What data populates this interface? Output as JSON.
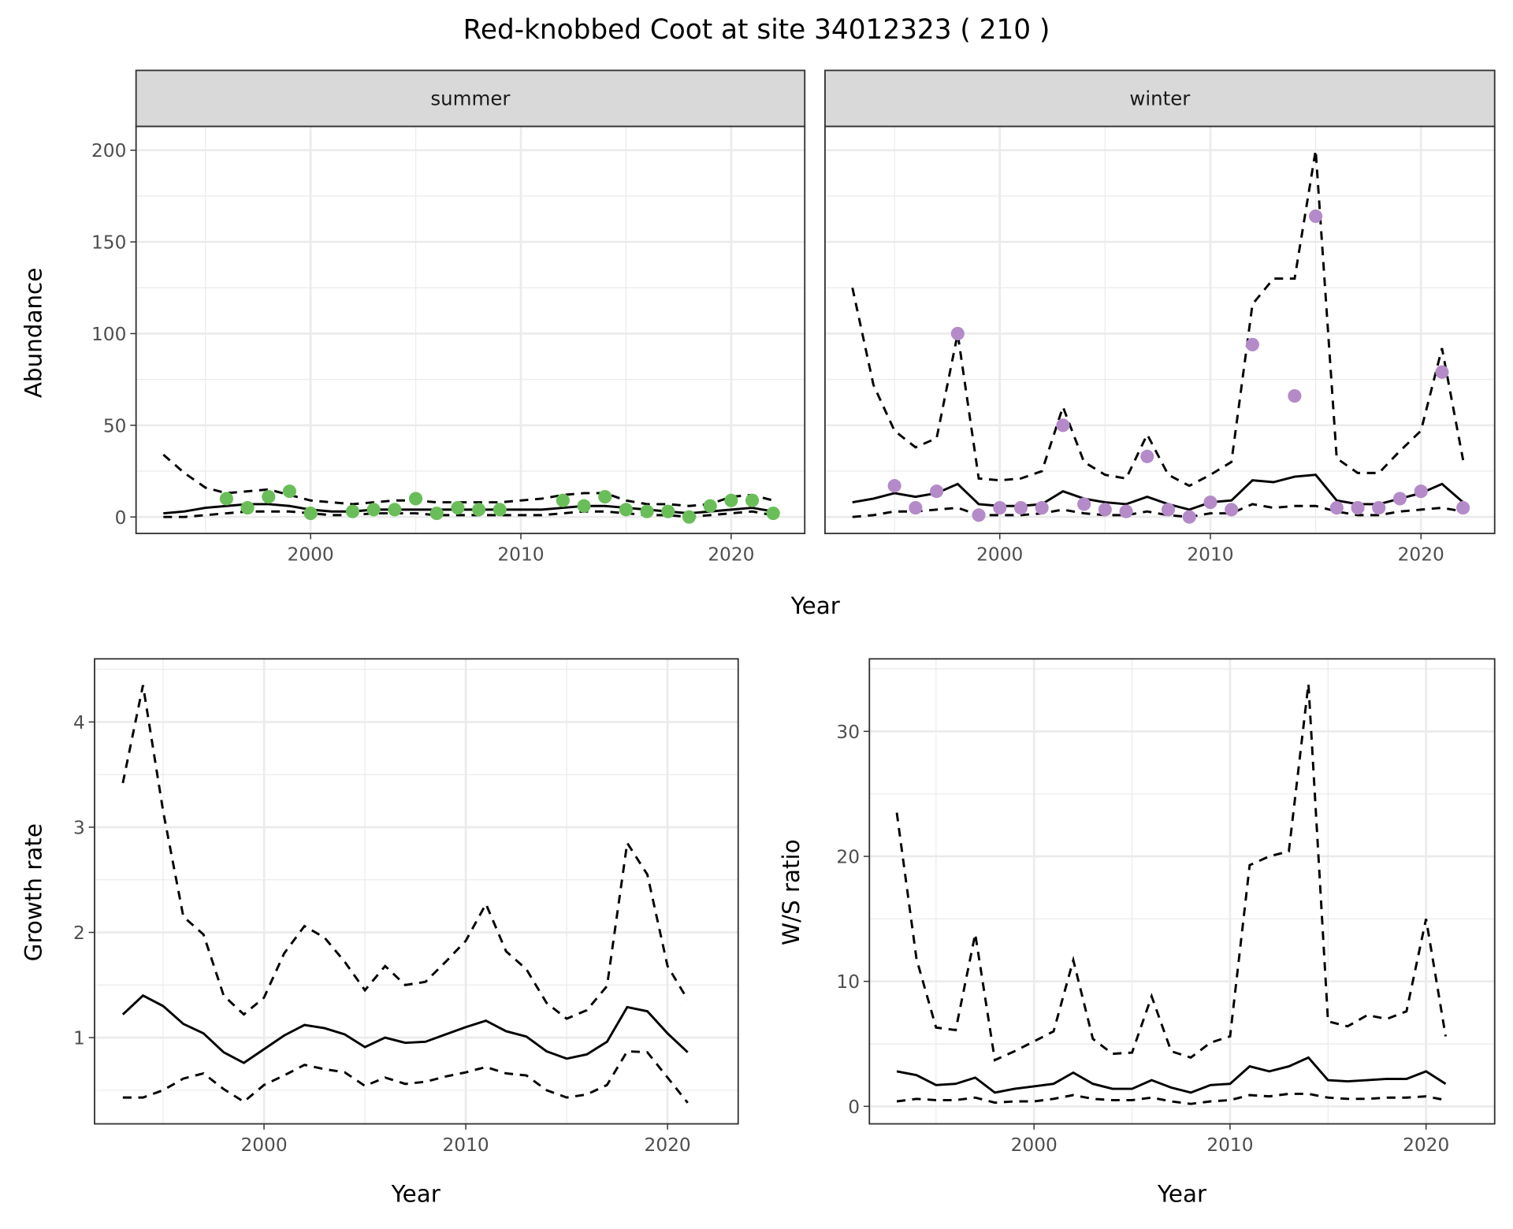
{
  "title": "Red-knobbed Coot at site 34012323 ( 210 )",
  "colors": {
    "summer_points": "#6ABE59",
    "winter_points": "#B48BC8",
    "lines": "#000000",
    "strip_fill": "#D9D9D9",
    "grid": "#EBEBEB"
  },
  "chart_data": [
    {
      "id": "summer",
      "type": "line",
      "strip": "summer",
      "xlabel": "Year",
      "ylabel": "Abundance",
      "xlim": [
        1991.7,
        2023.5
      ],
      "ylim": [
        -9,
        213
      ],
      "xticks": [
        2000,
        2010,
        2020
      ],
      "yticks": [
        0,
        50,
        100,
        150,
        200
      ],
      "grid": true,
      "x": [
        1993,
        1994,
        1995,
        1996,
        1997,
        1998,
        1999,
        2000,
        2001,
        2002,
        2003,
        2004,
        2005,
        2006,
        2007,
        2008,
        2009,
        2010,
        2011,
        2012,
        2013,
        2014,
        2015,
        2016,
        2017,
        2018,
        2019,
        2020,
        2021,
        2022
      ],
      "series": [
        {
          "style": "solid",
          "values": [
            2,
            3,
            5,
            6,
            7,
            7,
            6,
            4,
            3,
            3,
            4,
            4,
            4,
            4,
            4,
            4,
            4,
            4,
            4,
            5,
            6,
            6,
            5,
            4,
            3,
            2,
            3,
            4,
            5,
            3
          ]
        },
        {
          "style": "dashed",
          "values": [
            34,
            24,
            16,
            13,
            14,
            15,
            12,
            9,
            8,
            7,
            8,
            9,
            9,
            8,
            8,
            8,
            8,
            9,
            10,
            12,
            13,
            13,
            9,
            7,
            7,
            6,
            7,
            11,
            12,
            9
          ]
        },
        {
          "style": "dashed",
          "values": [
            0,
            0,
            1,
            2,
            3,
            3,
            3,
            2,
            1,
            1,
            2,
            2,
            2,
            1,
            1,
            1,
            1,
            1,
            1,
            2,
            3,
            3,
            2,
            1,
            1,
            0,
            1,
            2,
            3,
            1
          ]
        }
      ],
      "points": {
        "x": [
          1996,
          1997,
          1998,
          1999,
          2000,
          2002,
          2003,
          2004,
          2005,
          2006,
          2007,
          2008,
          2009,
          2012,
          2013,
          2014,
          2015,
          2016,
          2017,
          2018,
          2019,
          2020,
          2021,
          2022
        ],
        "y": [
          10,
          5,
          11,
          14,
          2,
          3,
          4,
          4,
          10,
          2,
          5,
          4,
          4,
          9,
          6,
          11,
          4,
          3,
          3,
          0,
          6,
          9,
          9,
          2
        ]
      }
    },
    {
      "id": "winter",
      "type": "line",
      "strip": "winter",
      "xlabel": "Year",
      "ylabel": "Abundance",
      "xlim": [
        1991.7,
        2023.5
      ],
      "ylim": [
        -9,
        213
      ],
      "xticks": [
        2000,
        2010,
        2020
      ],
      "yticks": [
        0,
        50,
        100,
        150,
        200
      ],
      "grid": true,
      "x": [
        1993,
        1994,
        1995,
        1996,
        1997,
        1998,
        1999,
        2000,
        2001,
        2002,
        2003,
        2004,
        2005,
        2006,
        2007,
        2008,
        2009,
        2010,
        2011,
        2012,
        2013,
        2014,
        2015,
        2016,
        2017,
        2018,
        2019,
        2020,
        2021,
        2022
      ],
      "series": [
        {
          "style": "solid",
          "values": [
            8,
            10,
            13,
            11,
            13,
            18,
            7,
            6,
            6,
            7,
            14,
            10,
            8,
            7,
            11,
            7,
            4,
            8,
            9,
            20,
            19,
            22,
            23,
            9,
            7,
            7,
            10,
            13,
            18,
            8
          ]
        },
        {
          "style": "dashed",
          "values": [
            125,
            72,
            47,
            38,
            43,
            100,
            21,
            20,
            21,
            25,
            60,
            30,
            23,
            21,
            45,
            23,
            17,
            23,
            30,
            116,
            130,
            130,
            200,
            32,
            24,
            24,
            36,
            47,
            92,
            31
          ]
        },
        {
          "style": "dashed",
          "values": [
            0,
            1,
            3,
            3,
            4,
            5,
            1,
            1,
            1,
            2,
            4,
            2,
            1,
            1,
            3,
            1,
            0,
            2,
            2,
            7,
            5,
            6,
            6,
            3,
            1,
            1,
            3,
            4,
            5,
            3
          ]
        }
      ],
      "points": {
        "x": [
          1995,
          1996,
          1997,
          1998,
          1999,
          2000,
          2001,
          2002,
          2003,
          2004,
          2005,
          2006,
          2007,
          2008,
          2009,
          2010,
          2011,
          2012,
          2014,
          2015,
          2016,
          2017,
          2018,
          2019,
          2020,
          2021,
          2022
        ],
        "y": [
          17,
          5,
          14,
          100,
          1,
          5,
          5,
          5,
          50,
          7,
          4,
          3,
          33,
          4,
          0,
          8,
          4,
          94,
          66,
          164,
          5,
          5,
          5,
          10,
          14,
          79,
          5
        ]
      }
    },
    {
      "id": "growth",
      "type": "line",
      "xlabel": "Year",
      "ylabel": "Growth rate",
      "xlim": [
        1991.6,
        2023.5
      ],
      "ylim": [
        0.18,
        4.6
      ],
      "xticks": [
        2000,
        2010,
        2020
      ],
      "yticks": [
        1,
        2,
        3,
        4
      ],
      "grid": true,
      "x": [
        1993,
        1994,
        1995,
        1996,
        1997,
        1998,
        1999,
        2000,
        2001,
        2002,
        2003,
        2004,
        2005,
        2006,
        2007,
        2008,
        2009,
        2010,
        2011,
        2012,
        2013,
        2014,
        2015,
        2016,
        2017,
        2018,
        2019,
        2020,
        2021
      ],
      "series": [
        {
          "style": "solid",
          "values": [
            1.22,
            1.4,
            1.3,
            1.13,
            1.04,
            0.86,
            0.76,
            0.89,
            1.02,
            1.12,
            1.09,
            1.03,
            0.91,
            1.0,
            0.95,
            0.96,
            1.03,
            1.1,
            1.16,
            1.06,
            1.01,
            0.87,
            0.8,
            0.84,
            0.96,
            1.29,
            1.25,
            1.04,
            0.86
          ]
        },
        {
          "style": "dashed",
          "values": [
            3.42,
            4.35,
            3.15,
            2.15,
            1.98,
            1.4,
            1.22,
            1.38,
            1.8,
            2.06,
            1.95,
            1.72,
            1.45,
            1.68,
            1.5,
            1.53,
            1.72,
            1.92,
            2.27,
            1.82,
            1.65,
            1.33,
            1.18,
            1.26,
            1.49,
            2.85,
            2.55,
            1.68,
            1.36
          ]
        },
        {
          "style": "dashed",
          "values": [
            0.43,
            0.43,
            0.5,
            0.61,
            0.66,
            0.51,
            0.39,
            0.55,
            0.64,
            0.74,
            0.7,
            0.67,
            0.54,
            0.62,
            0.56,
            0.58,
            0.63,
            0.67,
            0.72,
            0.66,
            0.64,
            0.5,
            0.43,
            0.46,
            0.55,
            0.87,
            0.86,
            0.62,
            0.38
          ]
        }
      ]
    },
    {
      "id": "ratio",
      "type": "line",
      "xlabel": "Year",
      "ylabel": "W/S ratio",
      "xlim": [
        1991.6,
        2023.5
      ],
      "ylim": [
        -1.4,
        35.8
      ],
      "xticks": [
        2000,
        2010,
        2020
      ],
      "yticks": [
        0,
        10,
        20,
        30
      ],
      "grid": true,
      "x": [
        1993,
        1994,
        1995,
        1996,
        1997,
        1998,
        1999,
        2000,
        2001,
        2002,
        2003,
        2004,
        2005,
        2006,
        2007,
        2008,
        2009,
        2010,
        2011,
        2012,
        2013,
        2014,
        2015,
        2016,
        2017,
        2018,
        2019,
        2020,
        2021
      ],
      "series": [
        {
          "style": "solid",
          "values": [
            2.8,
            2.5,
            1.7,
            1.8,
            2.3,
            1.1,
            1.4,
            1.6,
            1.8,
            2.7,
            1.8,
            1.4,
            1.4,
            2.1,
            1.5,
            1.1,
            1.7,
            1.8,
            3.2,
            2.8,
            3.2,
            3.9,
            2.1,
            2.0,
            2.1,
            2.2,
            2.2,
            2.8,
            1.8
          ]
        },
        {
          "style": "dashed",
          "values": [
            23.5,
            11.8,
            6.3,
            6.1,
            13.8,
            3.7,
            4.4,
            5.2,
            6.0,
            11.7,
            5.4,
            4.2,
            4.3,
            8.8,
            4.4,
            3.9,
            5.1,
            5.6,
            19.3,
            20.0,
            20.4,
            33.8,
            6.8,
            6.4,
            7.3,
            7.0,
            7.6,
            15.0,
            5.6
          ]
        },
        {
          "style": "dashed",
          "values": [
            0.4,
            0.6,
            0.5,
            0.5,
            0.7,
            0.3,
            0.4,
            0.4,
            0.6,
            0.9,
            0.6,
            0.5,
            0.5,
            0.7,
            0.4,
            0.2,
            0.4,
            0.5,
            0.9,
            0.8,
            1.0,
            1.0,
            0.7,
            0.6,
            0.6,
            0.7,
            0.7,
            0.8,
            0.5
          ]
        }
      ]
    }
  ]
}
